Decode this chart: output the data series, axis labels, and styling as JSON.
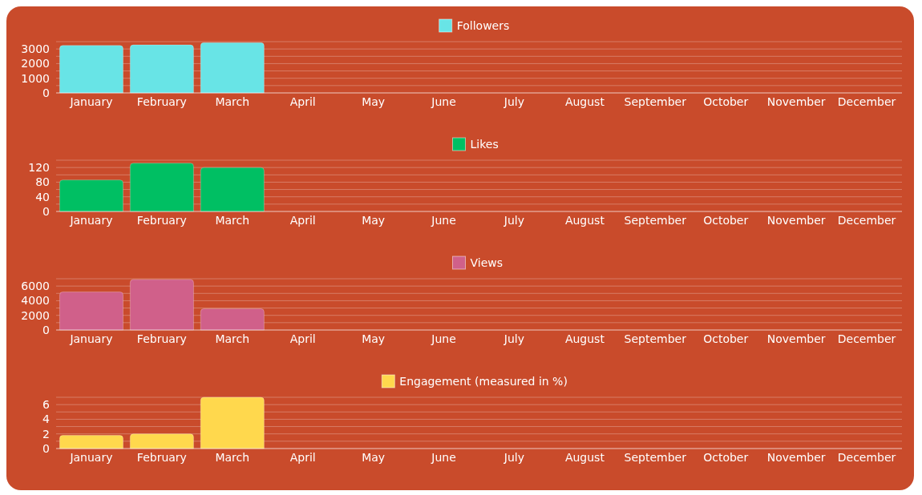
{
  "chart_data": [
    {
      "type": "bar",
      "categories": [
        "January",
        "February",
        "March",
        "April",
        "May",
        "June",
        "July",
        "August",
        "September",
        "October",
        "November",
        "December"
      ],
      "series": [
        {
          "name": "Followers",
          "color": "#68e4e6",
          "values": [
            3240,
            3280,
            3430,
            null,
            null,
            null,
            null,
            null,
            null,
            null,
            null,
            null
          ]
        }
      ],
      "ylim": [
        0,
        3500
      ],
      "yticks": [
        0,
        {
          "value": 500,
          "label": null
        },
        1000,
        {
          "value": 1500,
          "label": null
        },
        2000,
        {
          "value": 2500,
          "label": null
        },
        3000,
        {
          "value": 3500,
          "label": null
        }
      ],
      "grid": "y",
      "legend": "top"
    },
    {
      "type": "bar",
      "categories": [
        "January",
        "February",
        "March",
        "April",
        "May",
        "June",
        "July",
        "August",
        "September",
        "October",
        "November",
        "December"
      ],
      "series": [
        {
          "name": "Likes",
          "color": "#00bf63",
          "values": [
            86,
            132,
            120,
            null,
            null,
            null,
            null,
            null,
            null,
            null,
            null,
            null
          ]
        }
      ],
      "ylim": [
        0,
        140
      ],
      "yticks": [
        0,
        {
          "value": 20,
          "label": null
        },
        40,
        {
          "value": 60,
          "label": null
        },
        80,
        {
          "value": 100,
          "label": null
        },
        120,
        {
          "value": 140,
          "label": null
        }
      ],
      "grid": "y",
      "legend": "top"
    },
    {
      "type": "bar",
      "categories": [
        "January",
        "February",
        "March",
        "April",
        "May",
        "June",
        "July",
        "August",
        "September",
        "October",
        "November",
        "December"
      ],
      "series": [
        {
          "name": "Views",
          "color": "#d0608a",
          "values": [
            5200,
            6900,
            2900,
            null,
            null,
            null,
            null,
            null,
            null,
            null,
            null,
            null
          ]
        }
      ],
      "ylim": [
        0,
        7000
      ],
      "yticks": [
        0,
        {
          "value": 1000,
          "label": null
        },
        2000,
        {
          "value": 3000,
          "label": null
        },
        4000,
        {
          "value": 5000,
          "label": null
        },
        6000,
        {
          "value": 7000,
          "label": null
        }
      ],
      "grid": "y",
      "legend": "top"
    },
    {
      "type": "bar",
      "categories": [
        "January",
        "February",
        "March",
        "April",
        "May",
        "June",
        "July",
        "August",
        "September",
        "October",
        "November",
        "December"
      ],
      "series": [
        {
          "name": "Engagement (measured in %)",
          "color": "#ffd84d",
          "values": [
            1.8,
            2,
            7,
            null,
            null,
            null,
            null,
            null,
            null,
            null,
            null,
            null
          ]
        }
      ],
      "ylim": [
        0,
        7
      ],
      "yticks": [
        0,
        {
          "value": 1,
          "label": null
        },
        2,
        {
          "value": 3,
          "label": null
        },
        4,
        {
          "value": 5,
          "label": null
        },
        6,
        {
          "value": 7,
          "label": null
        }
      ],
      "grid": "y",
      "legend": "top"
    }
  ]
}
